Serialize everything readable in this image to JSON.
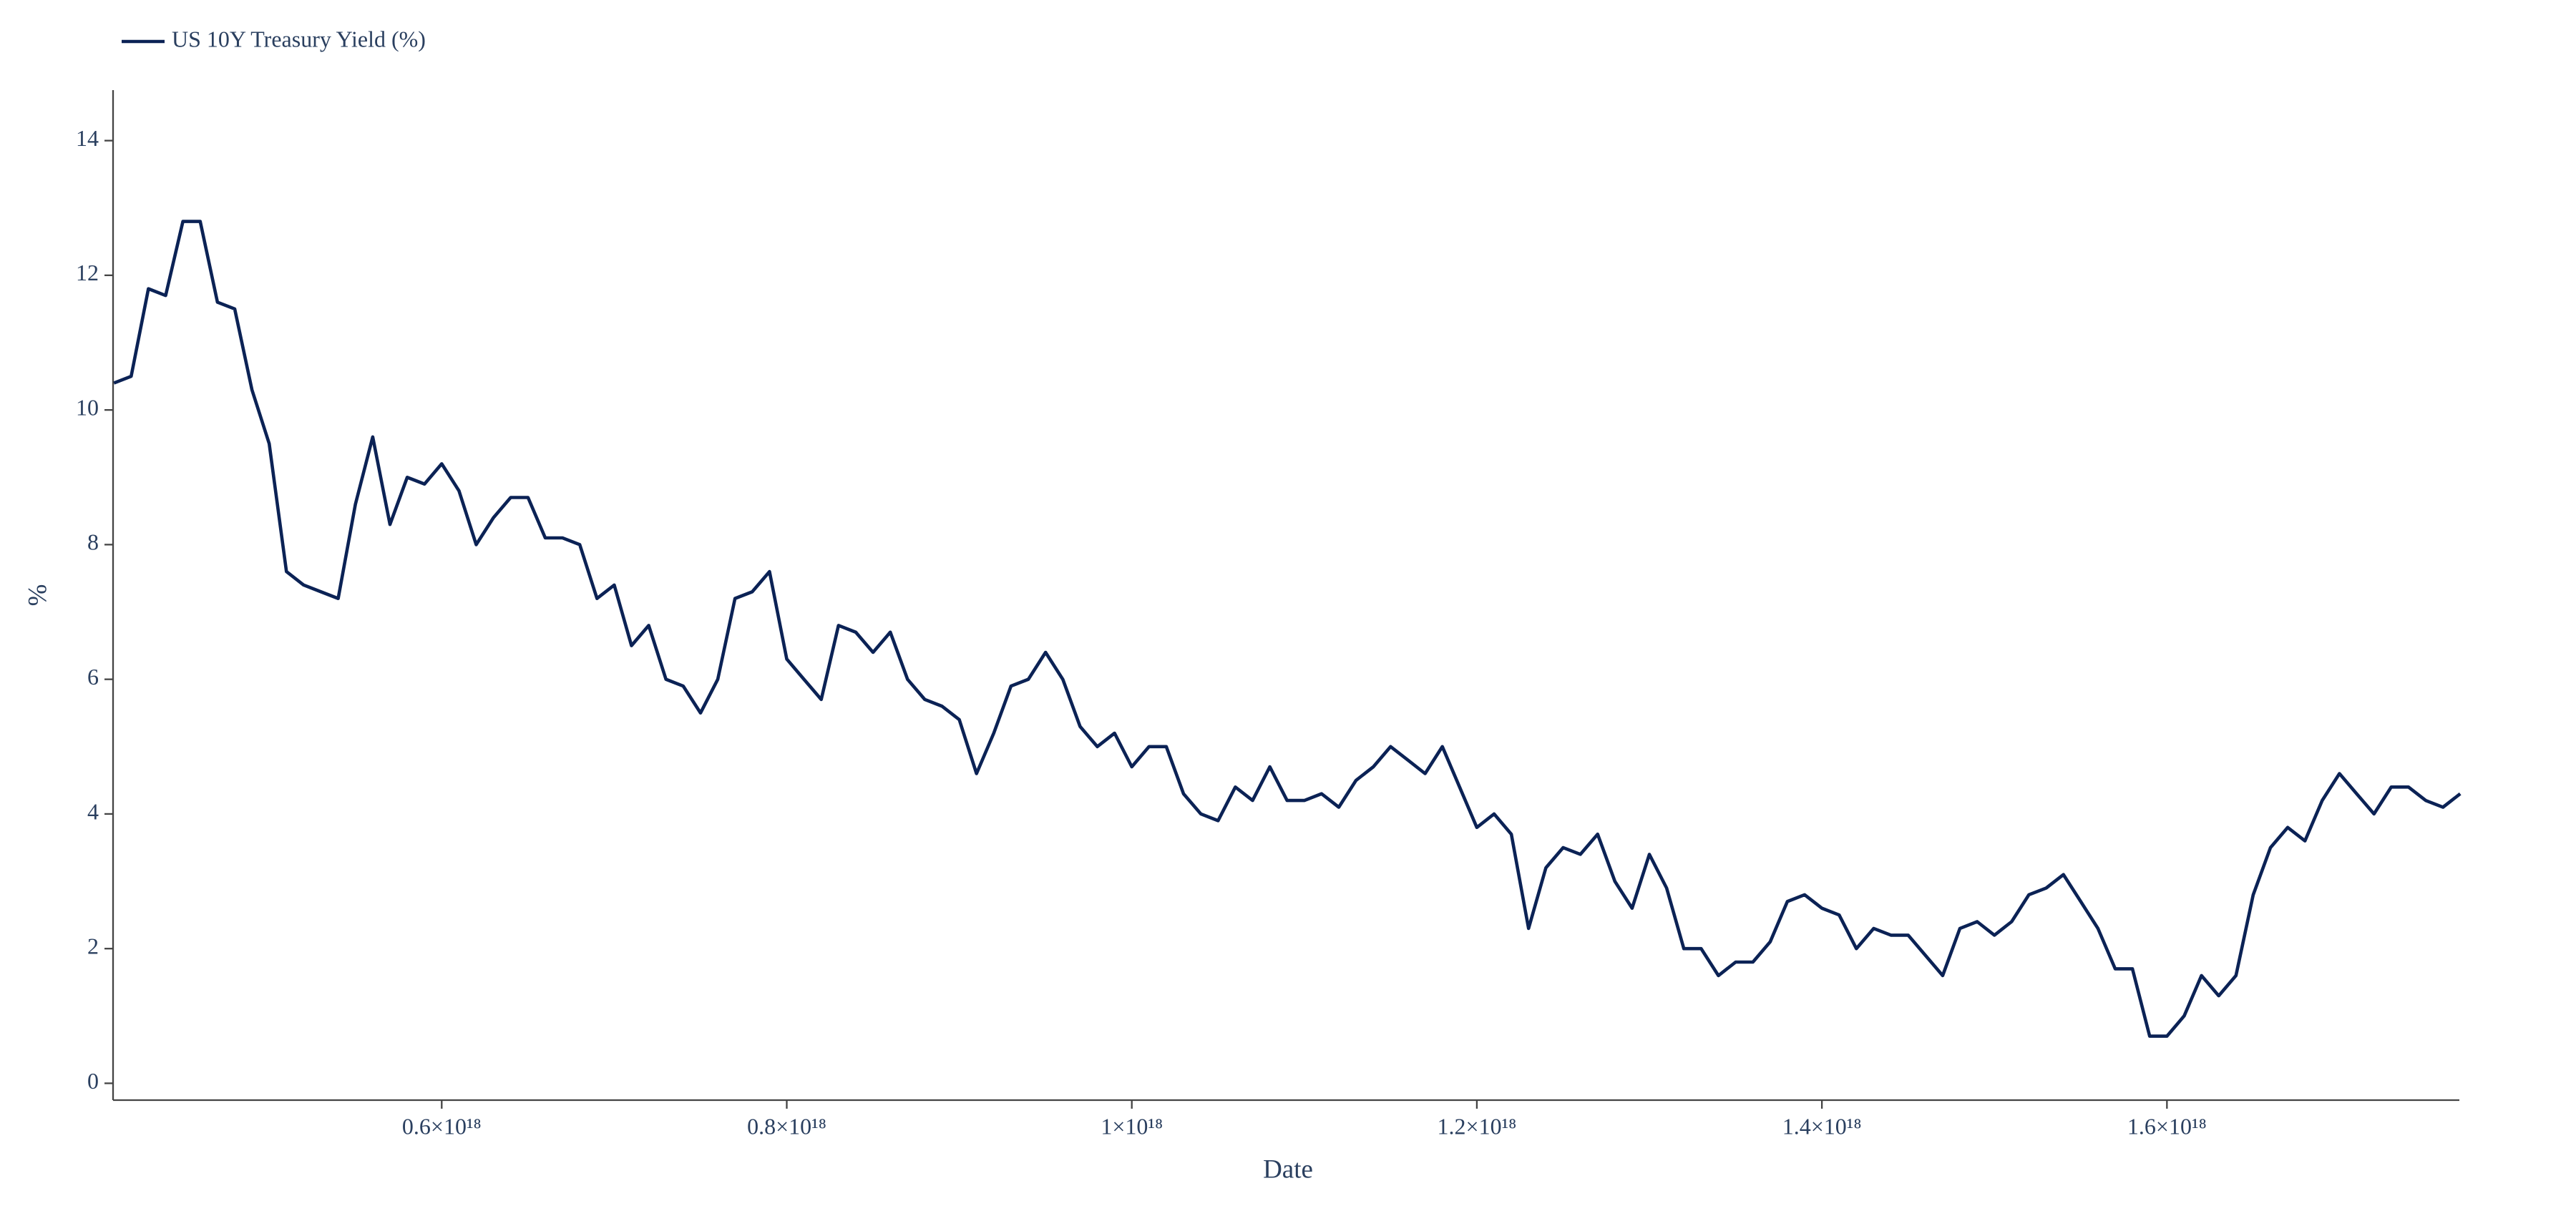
{
  "chart_data": {
    "type": "line",
    "xlabel": "Date",
    "ylabel": "%",
    "x": [
      4.1e+17,
      4.2e+17,
      4.3e+17,
      4.4e+17,
      4.5e+17,
      4.6e+17,
      4.7e+17,
      4.8e+17,
      4.9e+17,
      5e+17,
      5.1e+17,
      5.2e+17,
      5.3e+17,
      5.4e+17,
      5.5e+17,
      5.6e+17,
      5.7e+17,
      5.8e+17,
      5.9e+17,
      6e+17,
      6.1e+17,
      6.2e+17,
      6.3e+17,
      6.4e+17,
      6.5e+17,
      6.6e+17,
      6.7e+17,
      6.8e+17,
      6.9e+17,
      7e+17,
      7.1e+17,
      7.2e+17,
      7.3e+17,
      7.4e+17,
      7.5e+17,
      7.6e+17,
      7.7e+17,
      7.8e+17,
      7.9e+17,
      8e+17,
      8.1e+17,
      8.2e+17,
      8.3e+17,
      8.4e+17,
      8.5e+17,
      8.6e+17,
      8.7e+17,
      8.8e+17,
      8.9e+17,
      9e+17,
      9.1e+17,
      9.2e+17,
      9.3e+17,
      9.4e+17,
      9.5e+17,
      9.6e+17,
      9.7e+17,
      9.8e+17,
      9.9e+17,
      1e+18,
      1.01e+18,
      1.02e+18,
      1.03e+18,
      1.04e+18,
      1.05e+18,
      1.06e+18,
      1.07e+18,
      1.08e+18,
      1.09e+18,
      1.1e+18,
      1.11e+18,
      1.12e+18,
      1.13e+18,
      1.14e+18,
      1.15e+18,
      1.16e+18,
      1.17e+18,
      1.18e+18,
      1.19e+18,
      1.2e+18,
      1.21e+18,
      1.22e+18,
      1.23e+18,
      1.24e+18,
      1.25e+18,
      1.26e+18,
      1.27e+18,
      1.28e+18,
      1.29e+18,
      1.3e+18,
      1.31e+18,
      1.32e+18,
      1.33e+18,
      1.34e+18,
      1.35e+18,
      1.36e+18,
      1.37e+18,
      1.38e+18,
      1.39e+18,
      1.4e+18,
      1.41e+18,
      1.42e+18,
      1.43e+18,
      1.44e+18,
      1.45e+18,
      1.46e+18,
      1.47e+18,
      1.48e+18,
      1.49e+18,
      1.5e+18,
      1.51e+18,
      1.52e+18,
      1.53e+18,
      1.54e+18,
      1.55e+18,
      1.56e+18,
      1.57e+18,
      1.58e+18,
      1.59e+18,
      1.6e+18,
      1.61e+18,
      1.62e+18,
      1.63e+18,
      1.64e+18,
      1.65e+18,
      1.66e+18,
      1.67e+18,
      1.68e+18,
      1.69e+18,
      1.7e+18,
      1.71e+18,
      1.72e+18,
      1.73e+18,
      1.74e+18,
      1.75e+18,
      1.76e+18,
      1.77e+18
    ],
    "series": [
      {
        "name": "US 10Y Treasury Yield (%)",
        "color": "#0b2255",
        "values": [
          10.4,
          10.5,
          11.8,
          11.7,
          12.8,
          12.8,
          11.6,
          11.5,
          10.3,
          9.5,
          7.6,
          7.4,
          7.3,
          7.2,
          8.6,
          9.6,
          8.3,
          9.0,
          8.9,
          9.2,
          8.8,
          8.0,
          8.4,
          8.7,
          8.7,
          8.1,
          8.1,
          8.0,
          7.2,
          7.4,
          6.5,
          6.8,
          6.0,
          5.9,
          5.5,
          6.0,
          7.2,
          7.3,
          7.6,
          6.3,
          6.0,
          5.7,
          6.8,
          6.7,
          6.4,
          6.7,
          6.0,
          5.7,
          5.6,
          5.4,
          4.6,
          5.2,
          5.9,
          6.0,
          6.4,
          6.0,
          5.3,
          5.0,
          5.2,
          4.7,
          5.0,
          5.0,
          4.3,
          4.0,
          3.9,
          4.4,
          4.2,
          4.7,
          4.2,
          4.2,
          4.3,
          4.1,
          4.5,
          4.7,
          5.0,
          4.8,
          4.6,
          5.0,
          4.4,
          3.8,
          4.0,
          3.7,
          2.3,
          3.2,
          3.5,
          3.4,
          3.7,
          3.0,
          2.6,
          3.4,
          2.9,
          2.0,
          2.0,
          1.6,
          1.8,
          1.8,
          2.1,
          2.7,
          2.8,
          2.6,
          2.5,
          2.0,
          2.3,
          2.2,
          2.2,
          1.9,
          1.6,
          2.3,
          2.4,
          2.2,
          2.4,
          2.8,
          2.9,
          3.1,
          2.7,
          2.3,
          1.7,
          1.7,
          0.7,
          0.7,
          1.0,
          1.6,
          1.3,
          1.6,
          2.8,
          3.5,
          3.8,
          3.6,
          4.2,
          4.6,
          4.3,
          4.0,
          4.4,
          4.4,
          4.2,
          4.1,
          4.3
        ]
      }
    ],
    "xlim": [
      4.095e+17,
      1.7695e+18
    ],
    "xticks": [
      {
        "value": 6e+17,
        "label": "0.6×10¹⁸"
      },
      {
        "value": 8e+17,
        "label": "0.8×10¹⁸"
      },
      {
        "value": 1e+18,
        "label": "1×10¹⁸"
      },
      {
        "value": 1.2e+18,
        "label": "1.2×10¹⁸"
      },
      {
        "value": 1.4e+18,
        "label": "1.4×10¹⁸"
      },
      {
        "value": 1.6e+18,
        "label": "1.6×10¹⁸"
      }
    ],
    "ylim": [
      -0.25,
      14.75
    ],
    "yticks": [
      0,
      2,
      4,
      6,
      8,
      10,
      12,
      14
    ],
    "grid": false,
    "legend": "top-left"
  }
}
